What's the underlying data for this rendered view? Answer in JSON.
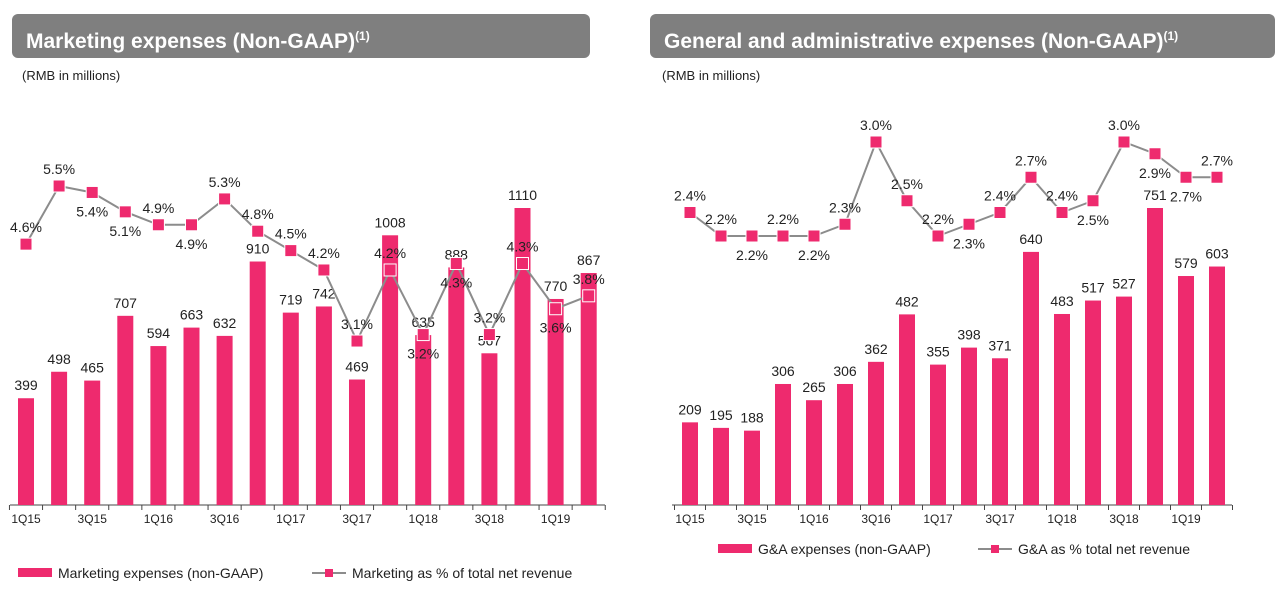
{
  "chart_data": [
    {
      "type": "bar",
      "title": "Marketing expenses (Non-GAAP)",
      "title_sup": "(1)",
      "unit": "(RMB in millions)",
      "categories": [
        "1Q15",
        "2Q15",
        "3Q15",
        "4Q15",
        "1Q16",
        "2Q16",
        "3Q16",
        "4Q16",
        "1Q17",
        "2Q17",
        "3Q17",
        "4Q17",
        "1Q18",
        "2Q18",
        "3Q18",
        "4Q18",
        "1Q19",
        "2Q19"
      ],
      "tick_labels": [
        "1Q15",
        "3Q15",
        "1Q16",
        "3Q16",
        "1Q17",
        "3Q17",
        "1Q18",
        "3Q18",
        "1Q19"
      ],
      "series": [
        {
          "name": "Marketing expenses (non-GAAP)",
          "type": "bar",
          "values": [
            399,
            498,
            465,
            707,
            594,
            663,
            632,
            910,
            719,
            742,
            469,
            1008,
            635,
            888,
            567,
            1110,
            770,
            867
          ]
        },
        {
          "name": "Marketing as % of total net revenue",
          "type": "line",
          "values": [
            4.6,
            5.5,
            5.4,
            5.1,
            4.9,
            4.9,
            5.3,
            4.8,
            4.5,
            4.2,
            3.1,
            4.2,
            3.2,
            4.3,
            3.2,
            4.3,
            3.6,
            3.8
          ]
        }
      ],
      "legend": "bottom",
      "grid": false
    },
    {
      "type": "bar",
      "title": "General and administrative expenses (Non-GAAP)",
      "title_sup": "(1)",
      "unit": "(RMB in millions)",
      "categories": [
        "1Q15",
        "2Q15",
        "3Q15",
        "4Q15",
        "1Q16",
        "2Q16",
        "3Q16",
        "4Q16",
        "1Q17",
        "2Q17",
        "3Q17",
        "4Q17",
        "1Q18",
        "2Q18",
        "3Q18",
        "4Q18",
        "1Q19",
        "2Q19"
      ],
      "tick_labels": [
        "1Q15",
        "3Q15",
        "1Q16",
        "3Q16",
        "1Q17",
        "3Q17",
        "1Q18",
        "3Q18",
        "1Q19"
      ],
      "series": [
        {
          "name": "G&A expenses (non-GAAP)",
          "type": "bar",
          "values": [
            209,
            195,
            188,
            306,
            265,
            306,
            362,
            482,
            355,
            398,
            371,
            640,
            483,
            517,
            527,
            751,
            579,
            603
          ]
        },
        {
          "name": "G&A as % total net revenue",
          "type": "line",
          "values": [
            2.4,
            2.2,
            2.2,
            2.2,
            2.2,
            2.3,
            3.0,
            2.5,
            2.2,
            2.3,
            2.4,
            2.7,
            2.4,
            2.5,
            3.0,
            2.9,
            2.7,
            2.7
          ]
        }
      ],
      "legend": "bottom",
      "grid": false
    }
  ],
  "colors": {
    "bar": "#ee2a6e",
    "line": "#8c8c8c",
    "header": "#7f7f7f"
  }
}
